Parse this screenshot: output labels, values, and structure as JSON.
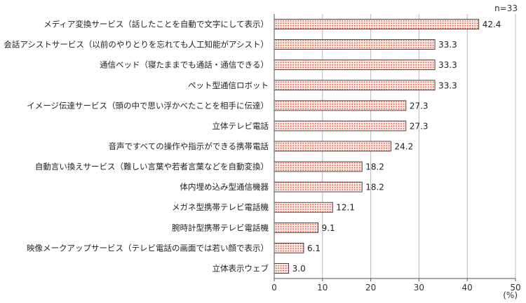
{
  "chart_data": {
    "type": "bar",
    "orientation": "horizontal",
    "note": "n=33",
    "unit_label": "(%)",
    "categories": [
      "メディア変換サービス（話したことを自動で文字にして表示）",
      "会話アシストサービス（以前のやりとりを忘れても人工知能がアシスト）",
      "通信ベッド（寝たままでも通話・通信できる）",
      "ペット型通信ロボット",
      "イメージ伝達サービス（頭の中で思い浮かべたことを相手に伝達）",
      "立体テレビ電話",
      "音声ですべての操作や指示ができる携帯電話",
      "自動言い換えサービス（難しい言葉や若者言葉などを自動変換）",
      "体内埋め込み型通信機器",
      "メガネ型携帯テレビ電話機",
      "腕時計型携帯テレビ電話機",
      "映像メークアップサービス（テレビ電話の画面では若い顔で表示）",
      "立体表示ウェブ"
    ],
    "values": [
      42.4,
      33.3,
      33.3,
      33.3,
      27.3,
      27.3,
      24.2,
      18.2,
      18.2,
      12.1,
      9.1,
      6.1,
      3.0
    ],
    "value_labels": [
      "42.4",
      "33.3",
      "33.3",
      "33.3",
      "27.3",
      "27.3",
      "24.2",
      "18.2",
      "18.2",
      "12.1",
      "9.1",
      "6.1",
      "3.0"
    ],
    "xlim": [
      0,
      50
    ],
    "xticks": [
      0,
      10,
      20,
      30,
      40,
      50
    ],
    "grid": true,
    "colors": {
      "bar_fill": "#fbe7e1",
      "bar_dots": "#e8503a",
      "bar_border": "#222222",
      "grid": "#bbbbbb",
      "axis": "#555555"
    }
  }
}
